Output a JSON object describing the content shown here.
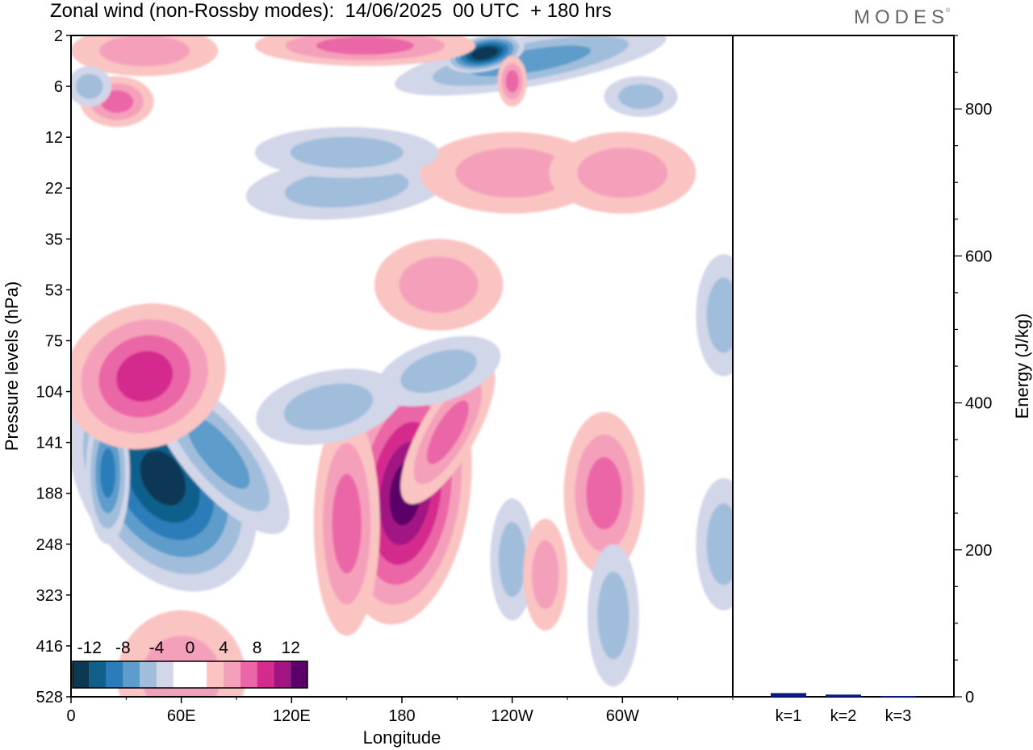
{
  "title": "Zonal wind (non-Rossby modes):  14/06/2025  00 UTC  + 180 hrs",
  "brand": "MODES",
  "brand_mark": "©",
  "chart_data": [
    {
      "type": "heatmap",
      "xlabel": "Longitude",
      "ylabel": "Pressure levels (hPa)",
      "x_ticks": [
        "0",
        "60E",
        "120E",
        "180",
        "120W",
        "60W"
      ],
      "x_tick_values": [
        0,
        60,
        120,
        180,
        240,
        300
      ],
      "xlim": [
        0,
        360
      ],
      "y_ticks": [
        "2",
        "6",
        "12",
        "22",
        "35",
        "53",
        "75",
        "104",
        "141",
        "188",
        "248",
        "323",
        "416",
        "528"
      ],
      "y_scale": "level-index",
      "colorbar": {
        "labels": [
          "-12",
          "-8",
          "-4",
          "0",
          "4",
          "8",
          "12"
        ],
        "colors": [
          "#0b3954",
          "#11608c",
          "#2a7db8",
          "#5d9ccb",
          "#a0bedb",
          "#d1d6e9",
          "#ffffff",
          "#ffffff",
          "#f9c4c2",
          "#f5a0bb",
          "#eb66a6",
          "#d42b8e",
          "#a11482",
          "#5a0068"
        ]
      },
      "blobs": [
        {
          "lon": 50,
          "lev": 8.7,
          "rx": 45,
          "ry": 2.4,
          "value": -12,
          "angle": -30
        },
        {
          "lon": 80,
          "lev": 8.2,
          "rx": 20,
          "ry": 2.0,
          "value": -7,
          "angle": -40
        },
        {
          "lon": 20,
          "lev": 8.6,
          "rx": 12,
          "ry": 1.4,
          "value": -9,
          "angle": 0
        },
        {
          "lon": 40,
          "lev": 6.7,
          "rx": 45,
          "ry": 1.4,
          "value": 9,
          "angle": -22
        },
        {
          "lon": 182,
          "lev": 9.0,
          "rx": 35,
          "ry": 2.6,
          "value": 13,
          "angle": 8
        },
        {
          "lon": 205,
          "lev": 7.8,
          "rx": 15,
          "ry": 1.6,
          "value": 7,
          "angle": 30
        },
        {
          "lon": 150,
          "lev": 9.6,
          "rx": 18,
          "ry": 2.2,
          "value": 6,
          "angle": 0
        },
        {
          "lon": 290,
          "lev": 9.0,
          "rx": 22,
          "ry": 1.6,
          "value": 6,
          "angle": 0
        },
        {
          "lon": 140,
          "lev": 7.3,
          "rx": 40,
          "ry": 0.7,
          "value": -5,
          "angle": -12
        },
        {
          "lon": 200,
          "lev": 6.6,
          "rx": 35,
          "ry": 0.6,
          "value": -5,
          "angle": -18
        },
        {
          "lon": 355,
          "lev": 5.5,
          "rx": 15,
          "ry": 1.2,
          "value": -5,
          "angle": 0
        },
        {
          "lon": 355,
          "lev": 10.0,
          "rx": 15,
          "ry": 1.3,
          "value": -5,
          "angle": 0
        },
        {
          "lon": 295,
          "lev": 11.4,
          "rx": 14,
          "ry": 1.4,
          "value": -5,
          "angle": 0
        },
        {
          "lon": 240,
          "lev": 10.3,
          "rx": 12,
          "ry": 1.2,
          "value": -4,
          "angle": 0
        },
        {
          "lon": 258,
          "lev": 10.6,
          "rx": 12,
          "ry": 1.1,
          "value": 4,
          "angle": 0
        },
        {
          "lon": 60,
          "lev": 12.6,
          "rx": 35,
          "ry": 1.3,
          "value": 5,
          "angle": 0
        },
        {
          "lon": 150,
          "lev": 3.0,
          "rx": 55,
          "ry": 0.6,
          "value": -5,
          "angle": -5
        },
        {
          "lon": 200,
          "lev": 4.9,
          "rx": 35,
          "ry": 0.9,
          "value": 4,
          "angle": 0
        },
        {
          "lon": 240,
          "lev": 2.7,
          "rx": 50,
          "ry": 0.8,
          "value": 4,
          "angle": 0
        },
        {
          "lon": 300,
          "lev": 2.7,
          "rx": 40,
          "ry": 0.8,
          "value": 4,
          "angle": 0
        },
        {
          "lon": 250,
          "lev": 0.5,
          "rx": 75,
          "ry": 0.5,
          "value": -6,
          "angle": -10
        },
        {
          "lon": 225,
          "lev": 0.35,
          "rx": 22,
          "ry": 0.35,
          "value": -14,
          "angle": -12
        },
        {
          "lon": 160,
          "lev": 0.2,
          "rx": 60,
          "ry": 0.4,
          "value": 6,
          "angle": 0
        },
        {
          "lon": 40,
          "lev": 0.3,
          "rx": 40,
          "ry": 0.5,
          "value": 5,
          "angle": 0
        },
        {
          "lon": 25,
          "lev": 1.3,
          "rx": 20,
          "ry": 0.5,
          "value": 6,
          "angle": 0
        },
        {
          "lon": 240,
          "lev": 0.9,
          "rx": 8,
          "ry": 0.5,
          "value": 7,
          "angle": 0
        },
        {
          "lon": 10,
          "lev": 1.0,
          "rx": 12,
          "ry": 0.4,
          "value": -5,
          "angle": 0
        },
        {
          "lon": 310,
          "lev": 1.2,
          "rx": 20,
          "ry": 0.4,
          "value": -5,
          "angle": 0
        },
        {
          "lon": 150,
          "lev": 2.3,
          "rx": 50,
          "ry": 0.5,
          "value": -4,
          "angle": 0
        }
      ]
    },
    {
      "type": "bar",
      "categories": [
        "k=1",
        "k=2",
        "k=3"
      ],
      "values": [
        5,
        3,
        1
      ],
      "ylabel": "Energy (J/kg)",
      "ylim": [
        0,
        900
      ],
      "y_ticks": [
        0,
        200,
        400,
        600,
        800
      ],
      "bar_color": "#0a1a8c"
    }
  ]
}
